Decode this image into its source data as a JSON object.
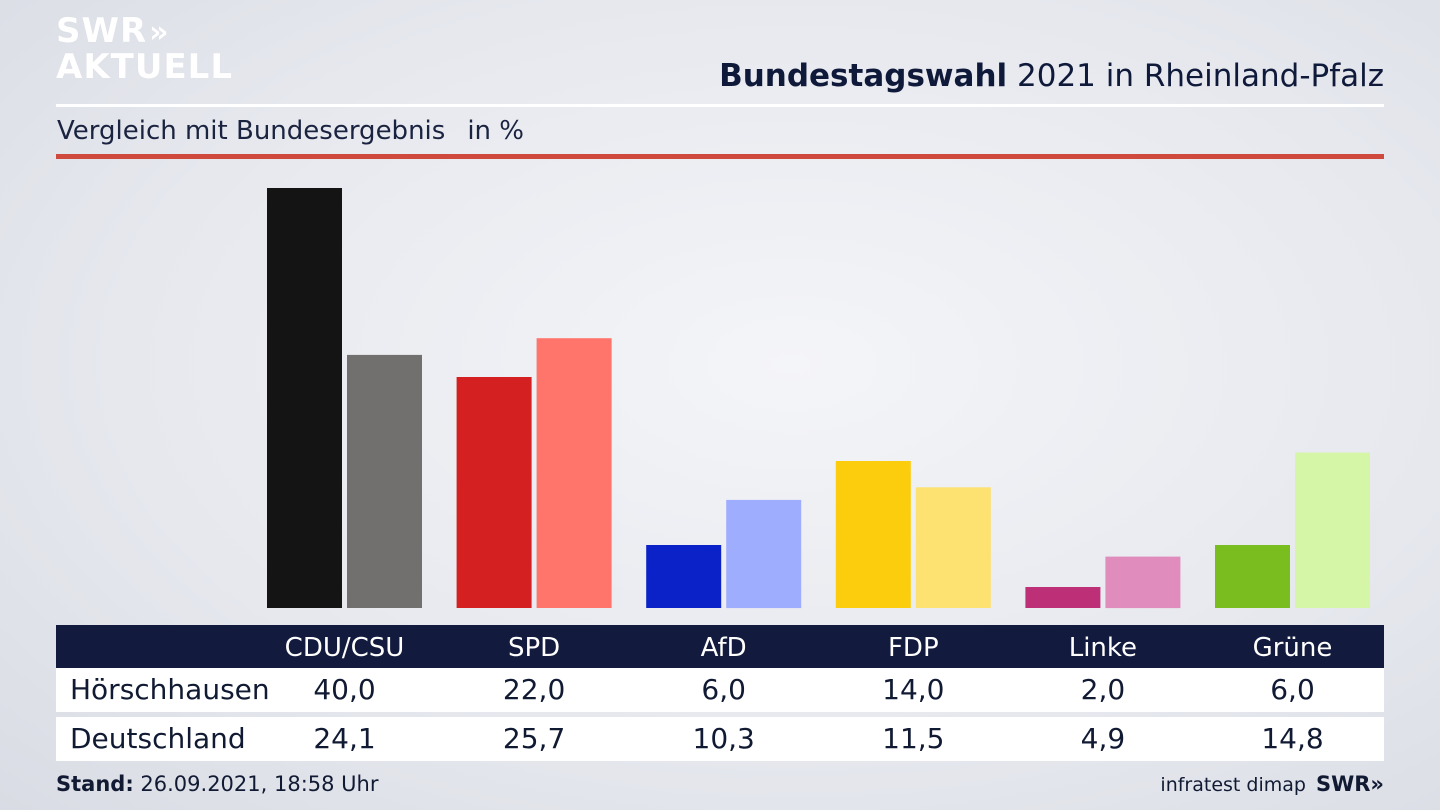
{
  "logo": {
    "line1": "SWR",
    "line1_chevrons": "»",
    "line2": "AKTUELL"
  },
  "header": {
    "title_bold": "Bundestagswahl",
    "title_rest": " 2021 in Rheinland-Pfalz",
    "subtitle": "Vergleich mit Bundesergebnis",
    "unit": "in %"
  },
  "chart_data": {
    "type": "bar",
    "categories": [
      "CDU/CSU",
      "SPD",
      "AfD",
      "FDP",
      "Linke",
      "Grüne"
    ],
    "series": [
      {
        "name": "Hörschhausen",
        "values": [
          40.0,
          22.0,
          6.0,
          14.0,
          2.0,
          6.0
        ]
      },
      {
        "name": "Deutschland",
        "values": [
          24.1,
          25.7,
          10.3,
          11.5,
          4.9,
          14.8
        ]
      }
    ],
    "colors": {
      "primary": [
        "#141414",
        "#d42020",
        "#0a22c8",
        "#fccd0c",
        "#bd3078",
        "#79bd1e"
      ],
      "secondary": [
        "#72706e",
        "#ff756c",
        "#9eadfd",
        "#fde171",
        "#e08cbd",
        "#d4f6a6"
      ]
    },
    "ylim": [
      0,
      40
    ],
    "grid": false
  },
  "table": {
    "headers": [
      "CDU/CSU",
      "SPD",
      "AfD",
      "FDP",
      "Linke",
      "Grüne"
    ],
    "rows": [
      {
        "label": "Hörschhausen",
        "values": [
          "40,0",
          "22,0",
          "6,0",
          "14,0",
          "2,0",
          "6,0"
        ]
      },
      {
        "label": "Deutschland",
        "values": [
          "24,1",
          "25,7",
          "10,3",
          "11,5",
          "4,9",
          "14,8"
        ]
      }
    ]
  },
  "footer": {
    "stand_label": "Stand:",
    "stand_value": " 26.09.2021, 18:58 Uhr",
    "source": "infratest dimap",
    "brand": "SWR»"
  }
}
